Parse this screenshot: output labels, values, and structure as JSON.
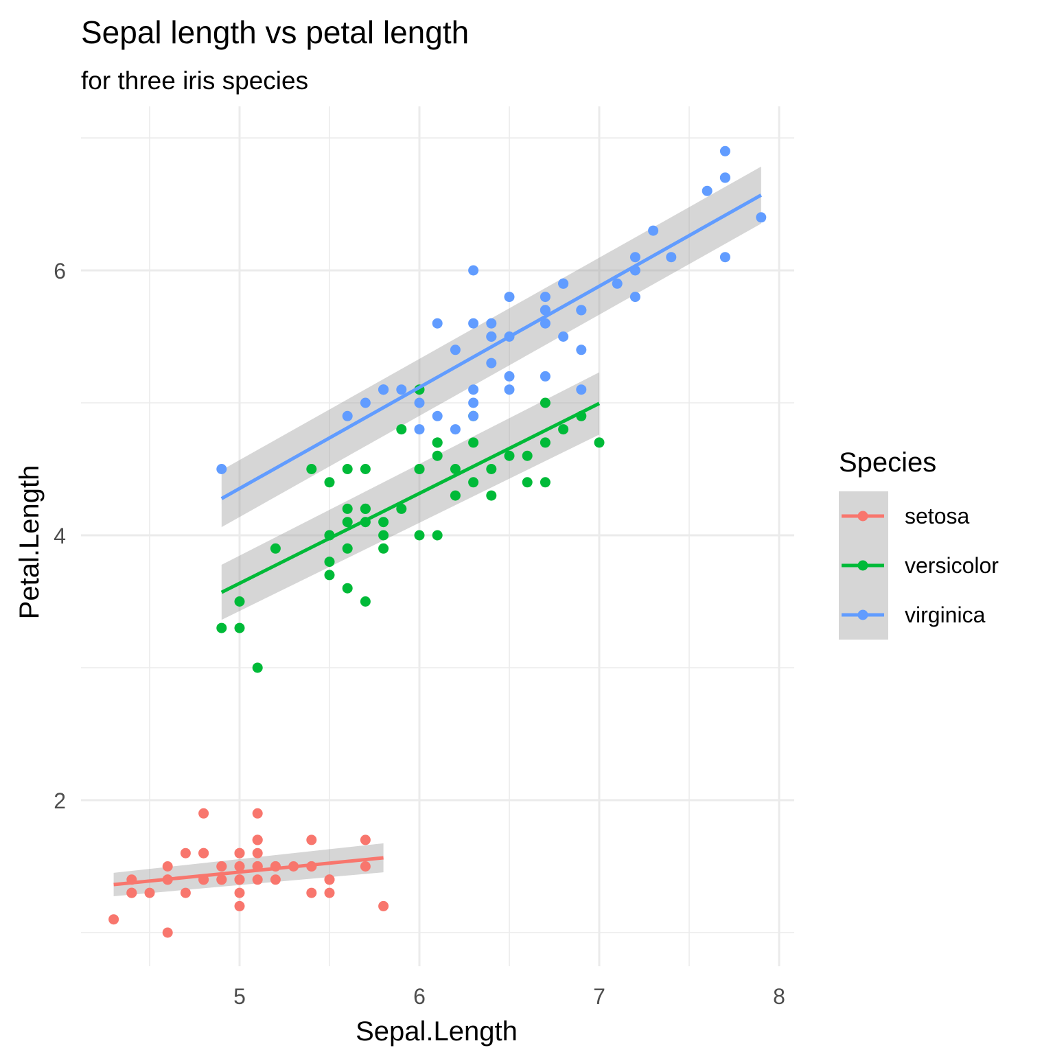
{
  "chart_data": {
    "type": "scatter",
    "title": "Sepal length vs petal length",
    "subtitle": "for three iris species",
    "xlabel": "Sepal.Length",
    "ylabel": "Petal.Length",
    "xlim": [
      4.2,
      8.1
    ],
    "ylim": [
      0.7,
      7.2
    ],
    "x_ticks": [
      5,
      6,
      7,
      8
    ],
    "x_tick_labels": [
      "5",
      "6",
      "7",
      "8"
    ],
    "y_ticks": [
      2,
      4,
      6
    ],
    "y_tick_labels": [
      "2",
      "4",
      "6"
    ],
    "grid": true,
    "legend": {
      "title": "Species",
      "placement": "right"
    },
    "series": [
      {
        "name": "setosa",
        "color": "#F8766D",
        "fit": {
          "x": [
            4.3,
            5.8
          ],
          "y": [
            1.3629,
            1.5648
          ],
          "se_lo": [
            1.2744,
            1.4554
          ],
          "se_hi": [
            1.4514,
            1.6742
          ]
        },
        "points": [
          [
            4.3,
            1.1
          ],
          [
            4.4,
            1.3
          ],
          [
            4.4,
            1.3
          ],
          [
            4.4,
            1.4
          ],
          [
            4.5,
            1.3
          ],
          [
            4.6,
            1.0
          ],
          [
            4.6,
            1.4
          ],
          [
            4.6,
            1.5
          ],
          [
            4.6,
            1.4
          ],
          [
            4.7,
            1.3
          ],
          [
            4.7,
            1.6
          ],
          [
            4.8,
            1.6
          ],
          [
            4.8,
            1.4
          ],
          [
            4.8,
            1.9
          ],
          [
            4.8,
            1.6
          ],
          [
            4.8,
            1.4
          ],
          [
            4.9,
            1.4
          ],
          [
            4.9,
            1.5
          ],
          [
            4.9,
            1.5
          ],
          [
            4.9,
            1.4
          ],
          [
            5.0,
            1.4
          ],
          [
            5.0,
            1.5
          ],
          [
            5.0,
            1.2
          ],
          [
            5.0,
            1.3
          ],
          [
            5.0,
            1.6
          ],
          [
            5.0,
            1.6
          ],
          [
            5.0,
            1.4
          ],
          [
            5.0,
            1.5
          ],
          [
            5.1,
            1.4
          ],
          [
            5.1,
            1.5
          ],
          [
            5.1,
            1.7
          ],
          [
            5.1,
            1.5
          ],
          [
            5.1,
            1.7
          ],
          [
            5.1,
            1.5
          ],
          [
            5.1,
            1.9
          ],
          [
            5.1,
            1.6
          ],
          [
            5.2,
            1.5
          ],
          [
            5.2,
            1.4
          ],
          [
            5.2,
            1.5
          ],
          [
            5.3,
            1.5
          ],
          [
            5.4,
            1.7
          ],
          [
            5.4,
            1.5
          ],
          [
            5.4,
            1.3
          ],
          [
            5.4,
            1.5
          ],
          [
            5.5,
            1.3
          ],
          [
            5.5,
            1.4
          ],
          [
            5.7,
            1.5
          ],
          [
            5.7,
            1.7
          ],
          [
            5.8,
            1.2
          ],
          [
            5.5,
            1.4
          ]
        ]
      },
      {
        "name": "versicolor",
        "color": "#00BA38",
        "fit": {
          "x": [
            4.9,
            7.0
          ],
          "y": [
            3.5693,
            4.9954
          ],
          "se_lo": [
            3.3616,
            4.7603
          ],
          "se_hi": [
            3.777,
            5.2305
          ]
        },
        "points": [
          [
            4.9,
            3.3
          ],
          [
            5.0,
            3.5
          ],
          [
            5.0,
            3.3
          ],
          [
            5.1,
            3.0
          ],
          [
            5.2,
            3.9
          ],
          [
            5.4,
            4.5
          ],
          [
            5.5,
            4.0
          ],
          [
            5.5,
            4.4
          ],
          [
            5.5,
            3.8
          ],
          [
            5.5,
            3.7
          ],
          [
            5.5,
            4.0
          ],
          [
            5.6,
            4.5
          ],
          [
            5.6,
            3.6
          ],
          [
            5.6,
            3.9
          ],
          [
            5.6,
            4.2
          ],
          [
            5.6,
            4.1
          ],
          [
            5.7,
            4.5
          ],
          [
            5.7,
            3.5
          ],
          [
            5.7,
            4.2
          ],
          [
            5.7,
            4.2
          ],
          [
            5.7,
            4.1
          ],
          [
            5.8,
            4.1
          ],
          [
            5.8,
            4.0
          ],
          [
            5.8,
            3.9
          ],
          [
            5.9,
            4.8
          ],
          [
            5.9,
            4.2
          ],
          [
            6.0,
            4.5
          ],
          [
            6.0,
            4.0
          ],
          [
            6.0,
            5.1
          ],
          [
            6.0,
            4.5
          ],
          [
            6.1,
            4.7
          ],
          [
            6.1,
            4.0
          ],
          [
            6.1,
            4.7
          ],
          [
            6.1,
            4.6
          ],
          [
            6.2,
            4.3
          ],
          [
            6.2,
            4.5
          ],
          [
            6.3,
            4.7
          ],
          [
            6.3,
            4.9
          ],
          [
            6.3,
            4.4
          ],
          [
            6.4,
            4.5
          ],
          [
            6.4,
            4.3
          ],
          [
            6.5,
            4.6
          ],
          [
            6.6,
            4.6
          ],
          [
            6.6,
            4.4
          ],
          [
            6.7,
            4.4
          ],
          [
            6.7,
            5.0
          ],
          [
            6.7,
            4.7
          ],
          [
            6.8,
            4.8
          ],
          [
            6.9,
            4.9
          ],
          [
            7.0,
            4.7
          ]
        ]
      },
      {
        "name": "virginica",
        "color": "#619CFF",
        "fit": {
          "x": [
            4.9,
            7.9
          ],
          "y": [
            4.2766,
            6.5682
          ],
          "se_lo": [
            4.0615,
            6.353
          ],
          "se_hi": [
            4.4917,
            6.7834
          ]
        },
        "points": [
          [
            4.9,
            4.5
          ],
          [
            5.6,
            4.9
          ],
          [
            5.7,
            5.0
          ],
          [
            5.8,
            5.1
          ],
          [
            5.8,
            5.1
          ],
          [
            5.8,
            5.1
          ],
          [
            5.9,
            5.1
          ],
          [
            6.0,
            5.0
          ],
          [
            6.0,
            4.8
          ],
          [
            6.1,
            5.6
          ],
          [
            6.1,
            4.9
          ],
          [
            6.2,
            5.4
          ],
          [
            6.2,
            4.8
          ],
          [
            6.3,
            6.0
          ],
          [
            6.3,
            5.1
          ],
          [
            6.3,
            5.6
          ],
          [
            6.3,
            4.9
          ],
          [
            6.3,
            5.0
          ],
          [
            6.4,
            5.6
          ],
          [
            6.4,
            5.5
          ],
          [
            6.4,
            5.3
          ],
          [
            6.4,
            5.5
          ],
          [
            6.5,
            5.8
          ],
          [
            6.5,
            5.5
          ],
          [
            6.5,
            5.1
          ],
          [
            6.5,
            5.2
          ],
          [
            6.7,
            5.8
          ],
          [
            6.7,
            5.7
          ],
          [
            6.7,
            5.6
          ],
          [
            6.7,
            5.7
          ],
          [
            6.7,
            5.2
          ],
          [
            6.8,
            5.9
          ],
          [
            6.8,
            5.5
          ],
          [
            6.9,
            5.7
          ],
          [
            6.9,
            5.4
          ],
          [
            6.9,
            5.1
          ],
          [
            7.1,
            5.9
          ],
          [
            7.2,
            6.1
          ],
          [
            7.2,
            6.0
          ],
          [
            7.2,
            5.8
          ],
          [
            7.3,
            6.3
          ],
          [
            7.4,
            6.1
          ],
          [
            7.6,
            6.6
          ],
          [
            7.7,
            6.7
          ],
          [
            7.7,
            6.9
          ],
          [
            7.7,
            6.7
          ],
          [
            7.7,
            6.1
          ],
          [
            7.9,
            6.4
          ],
          [
            6.8,
            5.9
          ],
          [
            6.9,
            5.7
          ]
        ]
      }
    ]
  }
}
